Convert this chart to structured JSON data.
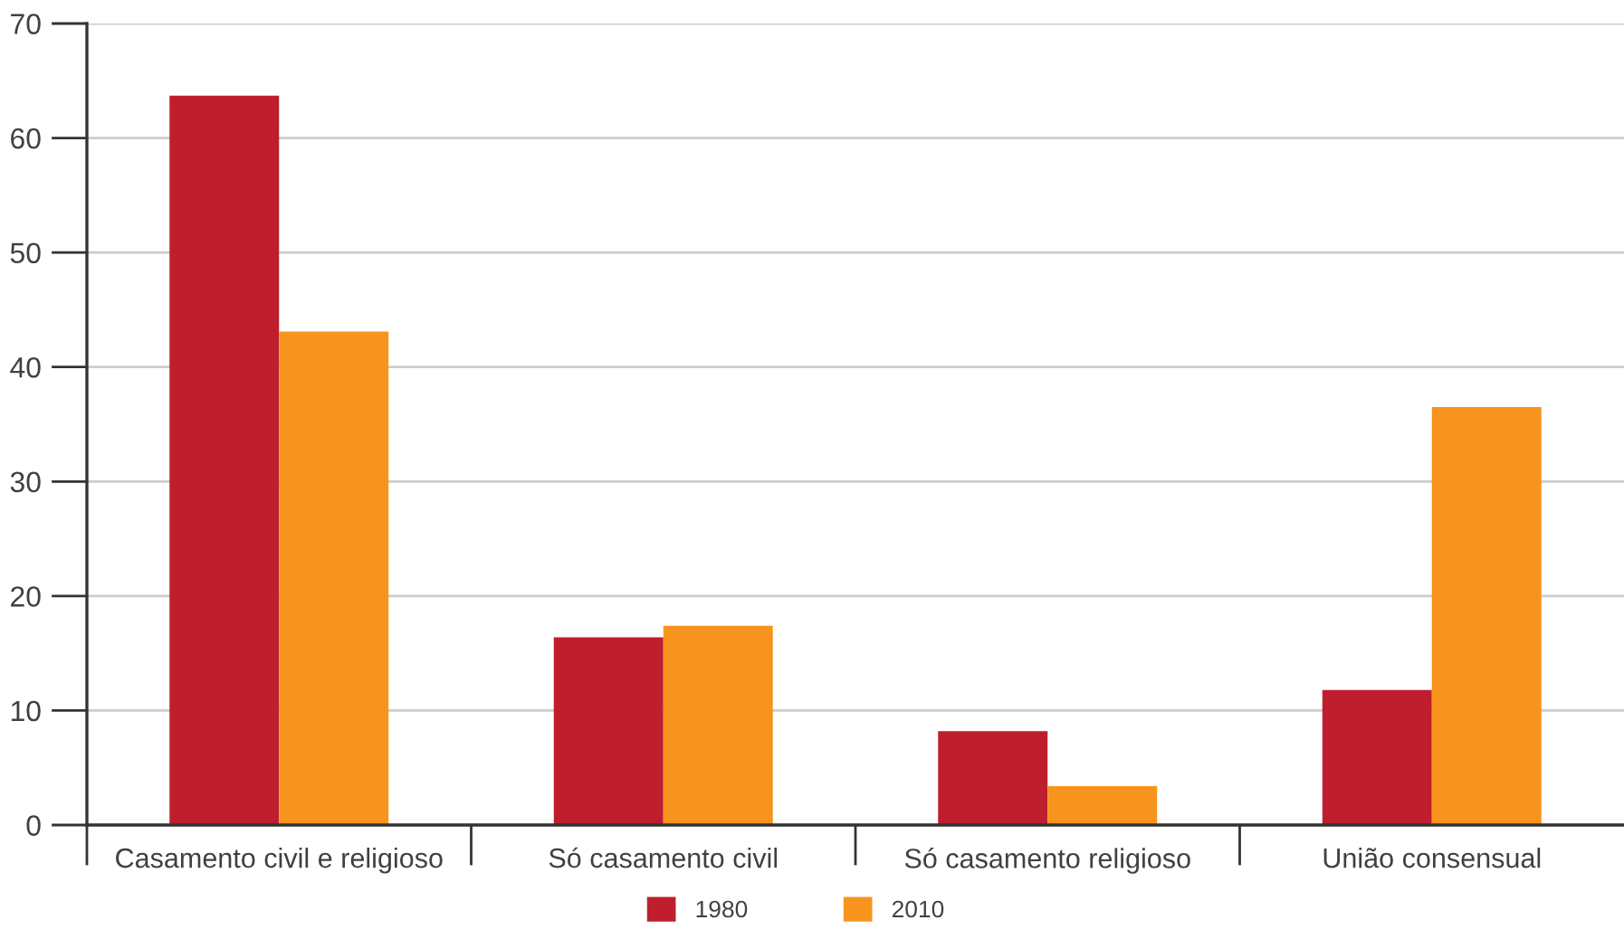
{
  "chart_data": {
    "type": "bar",
    "categories": [
      "Casamento civil e religioso",
      "Só casamento civil",
      "Só casamento religioso",
      "União consensual"
    ],
    "series": [
      {
        "name": "1980",
        "color": "#be1e2d",
        "values": [
          63.7,
          16.4,
          8.2,
          11.8
        ]
      },
      {
        "name": "2010",
        "color": "#f7941d",
        "values": [
          43.1,
          17.4,
          3.4,
          36.5
        ]
      }
    ],
    "ylim": [
      0,
      70
    ],
    "yticks": [
      0,
      10,
      20,
      30,
      40,
      50,
      60,
      70
    ],
    "grid": "y",
    "legend": "bottom"
  }
}
